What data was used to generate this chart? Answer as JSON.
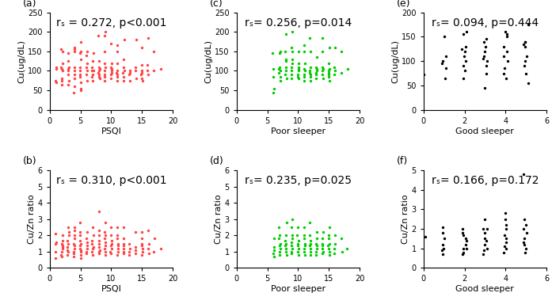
{
  "panels": [
    {
      "label": "(a)",
      "annotation": "rₛ = 0.272, p<0.001",
      "xlabel": "PSQI",
      "ylabel": "Cu(ug/dL)",
      "color": "#FF4444",
      "xlim": [
        0,
        20
      ],
      "ylim": [
        0,
        250
      ],
      "xticks": [
        0,
        5,
        10,
        15,
        20
      ],
      "yticks": [
        0,
        50,
        100,
        150,
        200,
        250
      ],
      "x": [
        1,
        1,
        1,
        1,
        2,
        2,
        2,
        2,
        2,
        2,
        2,
        2,
        2,
        3,
        3,
        3,
        3,
        3,
        3,
        3,
        3,
        4,
        4,
        4,
        4,
        4,
        4,
        4,
        4,
        4,
        5,
        5,
        5,
        5,
        5,
        5,
        5,
        5,
        5,
        5,
        5,
        6,
        6,
        6,
        6,
        6,
        6,
        6,
        7,
        7,
        7,
        7,
        7,
        7,
        7,
        7,
        8,
        8,
        8,
        8,
        8,
        8,
        8,
        8,
        8,
        9,
        9,
        9,
        9,
        9,
        9,
        9,
        9,
        9,
        10,
        10,
        10,
        10,
        10,
        10,
        10,
        10,
        11,
        11,
        11,
        11,
        11,
        11,
        11,
        11,
        12,
        12,
        12,
        12,
        12,
        12,
        12,
        13,
        13,
        13,
        13,
        14,
        14,
        14,
        14,
        15,
        15,
        15,
        15,
        15,
        15,
        15,
        16,
        16,
        16,
        16,
        17,
        17,
        18
      ],
      "y": [
        70,
        75,
        105,
        110,
        65,
        75,
        80,
        100,
        105,
        110,
        120,
        150,
        155,
        65,
        75,
        90,
        100,
        105,
        110,
        125,
        145,
        45,
        60,
        80,
        90,
        100,
        110,
        150,
        155,
        160,
        50,
        55,
        70,
        85,
        90,
        100,
        110,
        130,
        145,
        150,
        175,
        75,
        90,
        100,
        110,
        120,
        140,
        150,
        75,
        85,
        90,
        100,
        100,
        110,
        125,
        145,
        80,
        85,
        90,
        95,
        100,
        105,
        110,
        125,
        190,
        75,
        85,
        90,
        100,
        110,
        120,
        150,
        190,
        200,
        80,
        90,
        95,
        100,
        105,
        110,
        120,
        170,
        75,
        85,
        90,
        95,
        100,
        120,
        150,
        165,
        75,
        85,
        95,
        100,
        110,
        130,
        180,
        75,
        90,
        95,
        100,
        80,
        100,
        110,
        180,
        75,
        80,
        90,
        95,
        100,
        115,
        160,
        90,
        100,
        115,
        185,
        100,
        150,
        105
      ]
    },
    {
      "label": "(b)",
      "annotation": "rₛ = 0.310, p<0.001",
      "xlabel": "PSQI",
      "ylabel": "Cu/Zn ratio",
      "color": "#FF4444",
      "xlim": [
        0,
        20
      ],
      "ylim": [
        0,
        6
      ],
      "xticks": [
        0,
        5,
        10,
        15,
        20
      ],
      "yticks": [
        0,
        1,
        2,
        3,
        4,
        5,
        6
      ],
      "x": [
        1,
        1,
        1,
        1,
        1,
        2,
        2,
        2,
        2,
        2,
        2,
        2,
        2,
        2,
        3,
        3,
        3,
        3,
        3,
        3,
        3,
        3,
        3,
        4,
        4,
        4,
        4,
        4,
        4,
        4,
        4,
        4,
        4,
        5,
        5,
        5,
        5,
        5,
        5,
        5,
        5,
        5,
        5,
        5,
        6,
        6,
        6,
        6,
        6,
        6,
        6,
        7,
        7,
        7,
        7,
        7,
        7,
        7,
        7,
        8,
        8,
        8,
        8,
        8,
        8,
        8,
        8,
        8,
        9,
        9,
        9,
        9,
        9,
        9,
        9,
        9,
        9,
        10,
        10,
        10,
        10,
        10,
        10,
        10,
        10,
        11,
        11,
        11,
        11,
        11,
        11,
        11,
        11,
        12,
        12,
        12,
        12,
        12,
        12,
        12,
        13,
        13,
        13,
        13,
        14,
        14,
        14,
        14,
        15,
        15,
        15,
        15,
        15,
        15,
        15,
        16,
        16,
        16,
        16,
        17,
        17,
        18
      ],
      "y": [
        0.6,
        1.0,
        1.5,
        1.6,
        2.1,
        0.7,
        0.8,
        1.0,
        1.2,
        1.3,
        1.4,
        1.5,
        1.7,
        2.0,
        0.8,
        1.0,
        1.1,
        1.3,
        1.5,
        1.7,
        2.0,
        2.2,
        2.5,
        0.7,
        0.9,
        1.0,
        1.2,
        1.4,
        1.5,
        1.8,
        2.0,
        2.3,
        2.5,
        0.6,
        0.8,
        1.0,
        1.1,
        1.2,
        1.4,
        1.5,
        1.7,
        2.0,
        2.2,
        2.8,
        0.9,
        1.0,
        1.2,
        1.4,
        1.6,
        1.8,
        2.2,
        0.8,
        1.0,
        1.2,
        1.3,
        1.5,
        1.7,
        2.0,
        2.5,
        0.9,
        1.0,
        1.1,
        1.3,
        1.5,
        1.7,
        2.0,
        2.3,
        3.5,
        0.8,
        1.0,
        1.2,
        1.4,
        1.6,
        1.8,
        2.0,
        2.2,
        2.8,
        0.9,
        1.0,
        1.2,
        1.4,
        1.5,
        1.7,
        2.0,
        2.5,
        0.8,
        1.0,
        1.2,
        1.4,
        1.5,
        1.8,
        2.0,
        2.5,
        0.9,
        1.0,
        1.2,
        1.4,
        1.5,
        1.8,
        2.5,
        0.8,
        1.0,
        1.2,
        1.5,
        0.9,
        1.1,
        1.3,
        2.2,
        0.8,
        1.0,
        1.2,
        1.4,
        1.5,
        1.8,
        2.2,
        0.9,
        1.2,
        1.5,
        2.3,
        1.0,
        1.8,
        1.2
      ]
    },
    {
      "label": "(c)",
      "annotation": "rₛ= 0.256, p=0.014",
      "xlabel": "Poor sleeper",
      "ylabel": "Cu(ug/dL)",
      "color": "#00CC00",
      "xlim": [
        0,
        20
      ],
      "ylim": [
        0,
        250
      ],
      "xticks": [
        0,
        5,
        10,
        15,
        20
      ],
      "yticks": [
        0,
        50,
        100,
        150,
        200,
        250
      ],
      "x": [
        6,
        6,
        6,
        6,
        6,
        7,
        7,
        7,
        7,
        7,
        7,
        7,
        7,
        8,
        8,
        8,
        8,
        8,
        8,
        8,
        8,
        9,
        9,
        9,
        9,
        9,
        9,
        9,
        9,
        9,
        10,
        10,
        10,
        10,
        10,
        10,
        10,
        10,
        11,
        11,
        11,
        11,
        11,
        11,
        11,
        11,
        12,
        12,
        12,
        12,
        12,
        12,
        12,
        12,
        13,
        13,
        13,
        13,
        13,
        13,
        13,
        14,
        14,
        14,
        14,
        14,
        14,
        14,
        15,
        15,
        15,
        15,
        15,
        15,
        15,
        15,
        16,
        16,
        16,
        16,
        17,
        17,
        18
      ],
      "y": [
        45,
        55,
        85,
        105,
        145,
        75,
        85,
        95,
        100,
        105,
        110,
        145,
        150,
        80,
        90,
        100,
        110,
        125,
        130,
        150,
        195,
        80,
        90,
        100,
        110,
        120,
        130,
        150,
        160,
        200,
        80,
        85,
        90,
        100,
        105,
        110,
        120,
        150,
        75,
        85,
        90,
        100,
        105,
        120,
        150,
        165,
        75,
        85,
        90,
        95,
        100,
        110,
        150,
        185,
        80,
        90,
        95,
        100,
        105,
        110,
        135,
        80,
        90,
        100,
        105,
        110,
        150,
        185,
        75,
        85,
        90,
        95,
        100,
        105,
        120,
        160,
        90,
        100,
        110,
        160,
        95,
        150,
        105
      ]
    },
    {
      "label": "(d)",
      "annotation": "rₛ= 0.235, p=0.025",
      "xlabel": "Poor sleeper",
      "ylabel": "Cu/Zn ratio",
      "color": "#00CC00",
      "xlim": [
        0,
        20
      ],
      "ylim": [
        0,
        6
      ],
      "xticks": [
        0,
        5,
        10,
        15,
        20
      ],
      "yticks": [
        0,
        1,
        2,
        3,
        4,
        5,
        6
      ],
      "x": [
        6,
        6,
        6,
        6,
        6,
        7,
        7,
        7,
        7,
        7,
        7,
        7,
        7,
        8,
        8,
        8,
        8,
        8,
        8,
        8,
        8,
        9,
        9,
        9,
        9,
        9,
        9,
        9,
        9,
        9,
        10,
        10,
        10,
        10,
        10,
        10,
        10,
        10,
        11,
        11,
        11,
        11,
        11,
        11,
        11,
        11,
        12,
        12,
        12,
        12,
        12,
        12,
        12,
        12,
        13,
        13,
        13,
        13,
        13,
        13,
        13,
        14,
        14,
        14,
        14,
        14,
        14,
        14,
        15,
        15,
        15,
        15,
        15,
        15,
        15,
        15,
        16,
        16,
        16,
        16,
        17,
        17,
        18
      ],
      "y": [
        0.7,
        0.9,
        1.1,
        1.3,
        1.8,
        0.8,
        1.0,
        1.2,
        1.4,
        1.5,
        1.8,
        2.0,
        2.5,
        0.8,
        1.0,
        1.2,
        1.4,
        1.5,
        1.7,
        2.0,
        2.8,
        0.9,
        1.0,
        1.2,
        1.4,
        1.6,
        1.8,
        2.0,
        2.5,
        3.0,
        0.8,
        1.0,
        1.2,
        1.4,
        1.5,
        1.7,
        2.0,
        2.5,
        0.8,
        1.0,
        1.2,
        1.4,
        1.5,
        1.8,
        2.0,
        2.5,
        0.8,
        1.0,
        1.2,
        1.4,
        1.5,
        1.7,
        2.0,
        2.8,
        0.8,
        1.0,
        1.2,
        1.4,
        1.5,
        1.8,
        2.2,
        0.9,
        1.0,
        1.2,
        1.4,
        1.5,
        1.8,
        2.2,
        0.8,
        1.0,
        1.2,
        1.4,
        1.5,
        1.8,
        2.0,
        2.5,
        0.9,
        1.2,
        1.5,
        2.0,
        1.0,
        1.8,
        1.2
      ]
    },
    {
      "label": "(e)",
      "annotation": "rₛ= 0.094, p=0.444",
      "xlabel": "Good sleeper",
      "ylabel": "Cu(ug/dL)",
      "color": "#000000",
      "xlim": [
        0,
        6
      ],
      "ylim": [
        0,
        200
      ],
      "xticks": [
        0,
        2,
        4,
        6
      ],
      "yticks": [
        0,
        50,
        100,
        150,
        200
      ],
      "x": [
        0,
        1,
        1,
        1,
        1,
        1,
        1,
        2,
        2,
        2,
        2,
        2,
        2,
        2,
        2,
        2,
        2,
        3,
        3,
        3,
        3,
        3,
        3,
        3,
        3,
        3,
        3,
        4,
        4,
        4,
        4,
        4,
        4,
        4,
        4,
        4,
        4,
        5,
        5,
        5,
        5,
        5,
        5,
        5,
        5,
        5,
        5
      ],
      "y": [
        72,
        65,
        85,
        95,
        100,
        110,
        150,
        65,
        80,
        90,
        100,
        110,
        120,
        125,
        130,
        155,
        160,
        45,
        75,
        90,
        100,
        105,
        110,
        120,
        130,
        140,
        145,
        65,
        75,
        85,
        100,
        110,
        120,
        130,
        150,
        155,
        160,
        55,
        75,
        90,
        100,
        110,
        130,
        135,
        140,
        175,
        140
      ]
    },
    {
      "label": "(f)",
      "annotation": "rₛ= 0.166, p=0.172",
      "xlabel": "Good sleeper",
      "ylabel": "Cu/Zn ratio",
      "color": "#000000",
      "xlim": [
        0,
        6
      ],
      "ylim": [
        0,
        5
      ],
      "xticks": [
        0,
        2,
        4,
        6
      ],
      "yticks": [
        0,
        1,
        2,
        3,
        4,
        5
      ],
      "x": [
        0,
        1,
        1,
        1,
        1,
        1,
        1,
        1,
        2,
        2,
        2,
        2,
        2,
        2,
        2,
        2,
        2,
        2,
        3,
        3,
        3,
        3,
        3,
        3,
        3,
        3,
        3,
        3,
        4,
        4,
        4,
        4,
        4,
        4,
        4,
        4,
        4,
        4,
        5,
        5,
        5,
        5,
        5,
        5,
        5,
        5,
        5,
        5
      ],
      "y": [
        1.6,
        0.7,
        0.9,
        1.0,
        1.2,
        1.5,
        1.8,
        2.1,
        0.7,
        0.8,
        1.0,
        1.0,
        1.2,
        1.4,
        1.5,
        1.7,
        1.8,
        2.0,
        0.7,
        0.9,
        1.0,
        1.2,
        1.4,
        1.5,
        1.8,
        2.0,
        2.0,
        2.5,
        0.8,
        1.0,
        1.1,
        1.3,
        1.5,
        1.7,
        2.0,
        2.2,
        2.5,
        2.8,
        0.8,
        1.0,
        1.2,
        1.3,
        1.5,
        1.8,
        2.0,
        2.2,
        2.5,
        4.8
      ]
    }
  ],
  "fig_width": 6.97,
  "fig_height": 3.89,
  "dpi": 100,
  "annotation_fontsize": 10,
  "label_fontsize": 9,
  "axis_label_fontsize": 8,
  "tick_fontsize": 7
}
